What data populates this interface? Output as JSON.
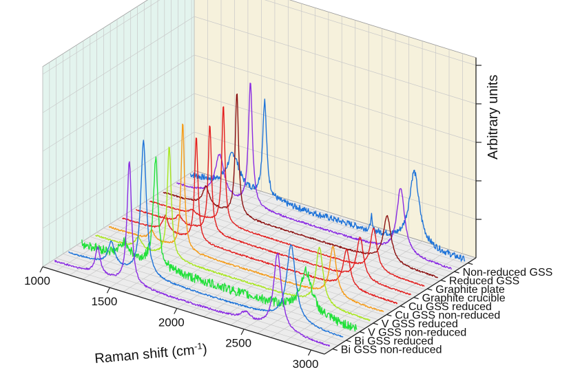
{
  "chart_data": {
    "type": "line",
    "subtype": "3d-waterfall",
    "xlabel_main": "Raman shift (cm",
    "xlabel_sup": "-1",
    "xlabel_end": ")",
    "zlabel": "Arbitrary units",
    "xlim": [
      1000,
      3100
    ],
    "x_ticks": [
      1000,
      1500,
      2000,
      2500,
      3000
    ],
    "grid": true,
    "series": [
      {
        "name": "Bi GSS non-reduced",
        "color": "#8a2be2",
        "peaks": [
          [
            1350,
            0.35,
            22
          ],
          [
            1585,
            1.6,
            20
          ],
          [
            2450,
            0.1,
            40
          ],
          [
            2690,
            1.0,
            35
          ]
        ],
        "noise": 0.012
      },
      {
        "name": "Bi GSS reduced",
        "color": "#1e73d8",
        "peaks": [
          [
            1350,
            0.3,
            30
          ],
          [
            1590,
            1.75,
            25
          ],
          [
            2690,
            1.0,
            40
          ]
        ],
        "noise": 0.01
      },
      {
        "name": "V GSS non-reduced",
        "color": "#22e03a",
        "peaks": [
          [
            1350,
            0.2,
            40
          ],
          [
            1580,
            1.4,
            22
          ],
          [
            2700,
            0.55,
            55
          ]
        ],
        "noise": 0.06
      },
      {
        "name": "V GSS reduced",
        "color": "#a8e61e",
        "peaks": [
          [
            1350,
            0.15,
            30
          ],
          [
            1580,
            1.45,
            18
          ],
          [
            2700,
            0.75,
            32
          ]
        ],
        "noise": 0.01
      },
      {
        "name": "Cu GSS non-reduced",
        "color": "#f59a16",
        "peaks": [
          [
            1350,
            0.12,
            25
          ],
          [
            1580,
            1.65,
            15
          ],
          [
            2700,
            0.65,
            30
          ]
        ],
        "noise": 0.01
      },
      {
        "name": "Cu GSS reduced",
        "color": "#e21d1d",
        "peaks": [
          [
            1350,
            0.2,
            25
          ],
          [
            1580,
            1.35,
            15
          ],
          [
            2700,
            0.5,
            30
          ]
        ],
        "noise": 0.01
      },
      {
        "name": "Graphite crucible",
        "color": "#e21d1d",
        "peaks": [
          [
            1350,
            0.1,
            25
          ],
          [
            1580,
            1.4,
            15
          ],
          [
            2700,
            0.55,
            30
          ]
        ],
        "noise": 0.01
      },
      {
        "name": "Graphite plate",
        "color": "#e21d1d",
        "peaks": [
          [
            1350,
            0.06,
            25
          ],
          [
            1580,
            1.55,
            14
          ],
          [
            2700,
            0.55,
            30
          ]
        ],
        "noise": 0.008
      },
      {
        "name": "Reduced GSS",
        "color": "#8b1010",
        "peaks": [
          [
            1350,
            0.25,
            30
          ],
          [
            1580,
            1.6,
            15
          ],
          [
            2700,
            0.6,
            35
          ]
        ],
        "noise": 0.01
      },
      {
        "name": "Non-reduced GSS",
        "color": "#8a2be2",
        "peaks": [
          [
            1350,
            0.55,
            40
          ],
          [
            1580,
            1.6,
            18
          ],
          [
            2700,
            0.85,
            35
          ]
        ],
        "noise": 0.012
      },
      {
        "name": "",
        "color": "#1e73d8",
        "peaks": [
          [
            1350,
            0.45,
            55
          ],
          [
            1585,
            1.25,
            18
          ],
          [
            2380,
            0.22,
            5
          ],
          [
            2700,
            0.95,
            45
          ]
        ],
        "noise": 0.04
      }
    ]
  }
}
